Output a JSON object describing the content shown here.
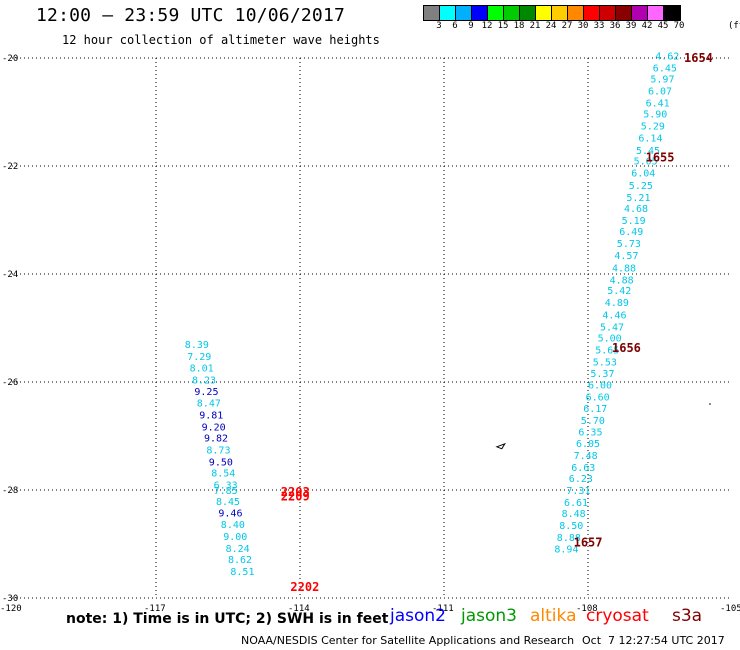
{
  "header": {
    "title": "12:00 – 23:59 UTC 10/06/2017",
    "subtitle": "12 hour collection of altimeter wave heights"
  },
  "colorbar": {
    "unit": "(ft)",
    "bins": [
      {
        "label": "3",
        "color": "#808080"
      },
      {
        "label": "6",
        "color": "#00ffff"
      },
      {
        "label": "9",
        "color": "#00b0ff"
      },
      {
        "label": "12",
        "color": "#0000ff"
      },
      {
        "label": "15",
        "color": "#00ff00"
      },
      {
        "label": "18",
        "color": "#00cc00"
      },
      {
        "label": "21",
        "color": "#008800"
      },
      {
        "label": "24",
        "color": "#ffff00"
      },
      {
        "label": "27",
        "color": "#ffcc00"
      },
      {
        "label": "30",
        "color": "#ff8800"
      },
      {
        "label": "33",
        "color": "#ff0000"
      },
      {
        "label": "36",
        "color": "#cc0000"
      },
      {
        "label": "39",
        "color": "#880000"
      },
      {
        "label": "42",
        "color": "#b000b0"
      },
      {
        "label": "45",
        "color": "#ff66ff"
      },
      {
        "label": "70",
        "color": "#000000"
      }
    ]
  },
  "map": {
    "lon_range": [
      -120,
      -105
    ],
    "lat_range": [
      -30,
      -20
    ],
    "lon_ticks": [
      {
        "value": -120,
        "label": "-120"
      },
      {
        "value": -117,
        "label": "-117"
      },
      {
        "value": -114,
        "label": "-114"
      },
      {
        "value": -111,
        "label": "-111"
      },
      {
        "value": -108,
        "label": "-108"
      },
      {
        "value": -105,
        "label": "-105"
      }
    ],
    "lat_ticks": [
      {
        "value": -20,
        "label": "-20"
      },
      {
        "value": -22,
        "label": "-22"
      },
      {
        "value": -24,
        "label": "-24"
      },
      {
        "value": -26,
        "label": "-26"
      },
      {
        "value": -28,
        "label": "-28"
      },
      {
        "value": -30,
        "label": "-30"
      }
    ],
    "grid": "dotted",
    "colors": {
      "cyan": "#00c8e8",
      "blue": "#0000c0",
      "time_s3a": "#800000",
      "time_cryosat": "#ff0000"
    },
    "tracks": [
      {
        "mission": "s3a",
        "time_labels": [
          {
            "text": "1654",
            "lon": -106.0,
            "lat": -19.98
          },
          {
            "text": "1655",
            "lon": -106.8,
            "lat": -21.82
          },
          {
            "text": "1656",
            "lon": -107.5,
            "lat": -25.35
          },
          {
            "text": "1657",
            "lon": -108.3,
            "lat": -28.95
          }
        ],
        "points": [
          {
            "lon": -106.6,
            "lat": -19.95,
            "swh": "4.62",
            "color": "cyan"
          },
          {
            "lon": -106.65,
            "lat": -20.18,
            "swh": "6.45",
            "color": "cyan"
          },
          {
            "lon": -106.7,
            "lat": -20.38,
            "swh": "5.97",
            "color": "cyan"
          },
          {
            "lon": -106.75,
            "lat": -20.6,
            "swh": "6.07",
            "color": "cyan"
          },
          {
            "lon": -106.8,
            "lat": -20.82,
            "swh": "6.41",
            "color": "cyan"
          },
          {
            "lon": -106.85,
            "lat": -21.03,
            "swh": "5.90",
            "color": "cyan"
          },
          {
            "lon": -106.9,
            "lat": -21.25,
            "swh": "5.29",
            "color": "cyan"
          },
          {
            "lon": -106.95,
            "lat": -21.47,
            "swh": "6.14",
            "color": "cyan"
          },
          {
            "lon": -107.0,
            "lat": -21.7,
            "swh": "5.45",
            "color": "cyan"
          },
          {
            "lon": -107.05,
            "lat": -21.9,
            "swh": "5.05",
            "color": "cyan"
          },
          {
            "lon": -107.1,
            "lat": -22.12,
            "swh": "6.04",
            "color": "cyan"
          },
          {
            "lon": -107.15,
            "lat": -22.35,
            "swh": "5.25",
            "color": "cyan"
          },
          {
            "lon": -107.2,
            "lat": -22.57,
            "swh": "5.21",
            "color": "cyan"
          },
          {
            "lon": -107.25,
            "lat": -22.78,
            "swh": "4.68",
            "color": "cyan"
          },
          {
            "lon": -107.3,
            "lat": -23.0,
            "swh": "5.19",
            "color": "cyan"
          },
          {
            "lon": -107.35,
            "lat": -23.2,
            "swh": "6.49",
            "color": "cyan"
          },
          {
            "lon": -107.4,
            "lat": -23.43,
            "swh": "5.73",
            "color": "cyan"
          },
          {
            "lon": -107.45,
            "lat": -23.65,
            "swh": "4.57",
            "color": "cyan"
          },
          {
            "lon": -107.5,
            "lat": -23.88,
            "swh": "4.88",
            "color": "cyan"
          },
          {
            "lon": -107.55,
            "lat": -24.1,
            "swh": "4.88",
            "color": "cyan"
          },
          {
            "lon": -107.6,
            "lat": -24.3,
            "swh": "5.42",
            "color": "cyan"
          },
          {
            "lon": -107.65,
            "lat": -24.52,
            "swh": "4.89",
            "color": "cyan"
          },
          {
            "lon": -107.7,
            "lat": -24.75,
            "swh": "4.46",
            "color": "cyan"
          },
          {
            "lon": -107.75,
            "lat": -24.97,
            "swh": "5.47",
            "color": "cyan"
          },
          {
            "lon": -107.8,
            "lat": -25.18,
            "swh": "5.00",
            "color": "cyan"
          },
          {
            "lon": -107.85,
            "lat": -25.4,
            "swh": "5.65",
            "color": "cyan"
          },
          {
            "lon": -107.9,
            "lat": -25.62,
            "swh": "5.53",
            "color": "cyan"
          },
          {
            "lon": -107.95,
            "lat": -25.83,
            "swh": "5.37",
            "color": "cyan"
          },
          {
            "lon": -108.0,
            "lat": -26.05,
            "swh": "6.00",
            "color": "cyan"
          },
          {
            "lon": -108.05,
            "lat": -26.27,
            "swh": "6.60",
            "color": "cyan"
          },
          {
            "lon": -108.1,
            "lat": -26.48,
            "swh": "6.17",
            "color": "cyan"
          },
          {
            "lon": -108.15,
            "lat": -26.7,
            "swh": "5.70",
            "color": "cyan"
          },
          {
            "lon": -108.2,
            "lat": -26.92,
            "swh": "6.35",
            "color": "cyan"
          },
          {
            "lon": -108.25,
            "lat": -27.13,
            "swh": "6.05",
            "color": "cyan"
          },
          {
            "lon": -108.3,
            "lat": -27.35,
            "swh": "7.48",
            "color": "cyan"
          },
          {
            "lon": -108.35,
            "lat": -27.57,
            "swh": "6.63",
            "color": "cyan"
          },
          {
            "lon": -108.4,
            "lat": -27.78,
            "swh": "6.23",
            "color": "cyan"
          },
          {
            "lon": -108.45,
            "lat": -28.0,
            "swh": "7.31",
            "color": "cyan"
          },
          {
            "lon": -108.5,
            "lat": -28.22,
            "swh": "6.61",
            "color": "cyan"
          },
          {
            "lon": -108.55,
            "lat": -28.43,
            "swh": "8.48",
            "color": "cyan"
          },
          {
            "lon": -108.6,
            "lat": -28.65,
            "swh": "8.50",
            "color": "cyan"
          },
          {
            "lon": -108.65,
            "lat": -28.87,
            "swh": "8.88",
            "color": "cyan"
          },
          {
            "lon": -108.7,
            "lat": -29.08,
            "swh": "8.94",
            "color": "cyan"
          }
        ]
      },
      {
        "mission": "cryosat",
        "time_labels": [
          {
            "text": "2203",
            "lon": -114.4,
            "lat": -28.02
          },
          {
            "text": "2209",
            "lon": -114.4,
            "lat": -28.1
          },
          {
            "text": "2202",
            "lon": -114.2,
            "lat": -29.78
          }
        ],
        "points": [
          {
            "lon": -116.4,
            "lat": -25.3,
            "swh": "8.39",
            "color": "cyan"
          },
          {
            "lon": -116.35,
            "lat": -25.52,
            "swh": "7.29",
            "color": "cyan"
          },
          {
            "lon": -116.3,
            "lat": -25.73,
            "swh": "8.01",
            "color": "cyan"
          },
          {
            "lon": -116.25,
            "lat": -25.95,
            "swh": "8.23",
            "color": "cyan"
          },
          {
            "lon": -116.2,
            "lat": -26.17,
            "swh": "9.25",
            "color": "blue"
          },
          {
            "lon": -116.15,
            "lat": -26.38,
            "swh": "8.47",
            "color": "cyan"
          },
          {
            "lon": -116.1,
            "lat": -26.6,
            "swh": "9.81",
            "color": "blue"
          },
          {
            "lon": -116.05,
            "lat": -26.82,
            "swh": "9.20",
            "color": "blue"
          },
          {
            "lon": -116.0,
            "lat": -27.03,
            "swh": "9.82",
            "color": "blue"
          },
          {
            "lon": -115.95,
            "lat": -27.25,
            "swh": "8.73",
            "color": "cyan"
          },
          {
            "lon": -115.9,
            "lat": -27.47,
            "swh": "9.50",
            "color": "blue"
          },
          {
            "lon": -115.85,
            "lat": -27.68,
            "swh": "8.54",
            "color": "cyan"
          },
          {
            "lon": -115.8,
            "lat": -27.9,
            "swh": "6.33",
            "color": "cyan"
          },
          {
            "lon": -115.8,
            "lat": -28.0,
            "swh": "7.85",
            "color": "cyan"
          },
          {
            "lon": -115.75,
            "lat": -28.2,
            "swh": "8.45",
            "color": "cyan"
          },
          {
            "lon": -115.7,
            "lat": -28.42,
            "swh": "9.46",
            "color": "blue"
          },
          {
            "lon": -115.65,
            "lat": -28.63,
            "swh": "8.40",
            "color": "cyan"
          },
          {
            "lon": -115.6,
            "lat": -28.85,
            "swh": "9.00",
            "color": "cyan"
          },
          {
            "lon": -115.55,
            "lat": -29.07,
            "swh": "8.24",
            "color": "cyan"
          },
          {
            "lon": -115.5,
            "lat": -29.28,
            "swh": "8.62",
            "color": "cyan"
          },
          {
            "lon": -115.45,
            "lat": -29.5,
            "swh": "8.51",
            "color": "cyan"
          }
        ]
      }
    ],
    "island_marker": {
      "lon": -109.9,
      "lat": -27.2
    }
  },
  "footer": {
    "note": "note: 1) Time is in UTC; 2) SWH is in feet",
    "missions": [
      {
        "name": "jason2",
        "color": "#0000ff"
      },
      {
        "name": "jason3",
        "color": "#009900"
      },
      {
        "name": "altika",
        "color": "#ff8800"
      },
      {
        "name": "cryosat",
        "color": "#ff0000"
      },
      {
        "name": "s3a",
        "color": "#800000"
      }
    ],
    "credit": "NOAA/NESDIS Center for Satellite Applications and Research",
    "timestamp": "Oct  7 12:27:54 UTC 2017"
  }
}
